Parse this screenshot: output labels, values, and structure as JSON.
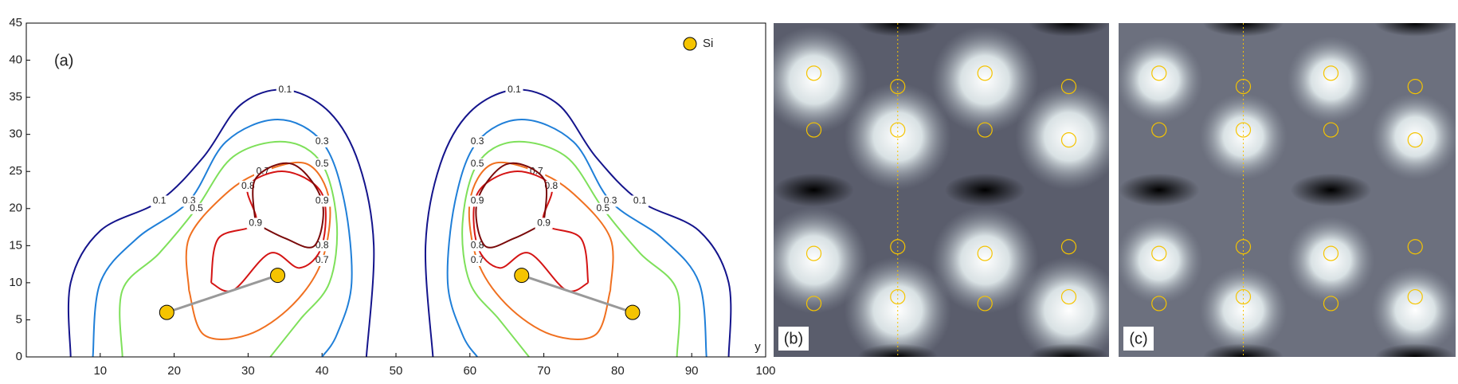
{
  "chart_data": {
    "type": "contour",
    "panel_label": "(a)",
    "xlabel": "y",
    "xlim": [
      0,
      100
    ],
    "ylim": [
      0,
      45
    ],
    "xticks": [
      10,
      20,
      30,
      40,
      50,
      60,
      70,
      80,
      90,
      100
    ],
    "yticks": [
      0,
      5,
      10,
      15,
      20,
      25,
      30,
      35,
      40,
      45
    ],
    "levels": [
      0.1,
      0.3,
      0.5,
      0.7,
      0.8,
      0.9
    ],
    "level_colors": [
      "#14148c",
      "#1f7fd8",
      "#7ee05a",
      "#f07020",
      "#d41414",
      "#7a0a0a"
    ],
    "series": [
      {
        "name": "Si",
        "color": "#f5c400",
        "x": [
          19,
          34,
          67,
          82
        ],
        "y": [
          6,
          11,
          11,
          6
        ]
      }
    ]
  },
  "images": [
    {
      "label": "(b)"
    },
    {
      "label": "(c)"
    }
  ]
}
